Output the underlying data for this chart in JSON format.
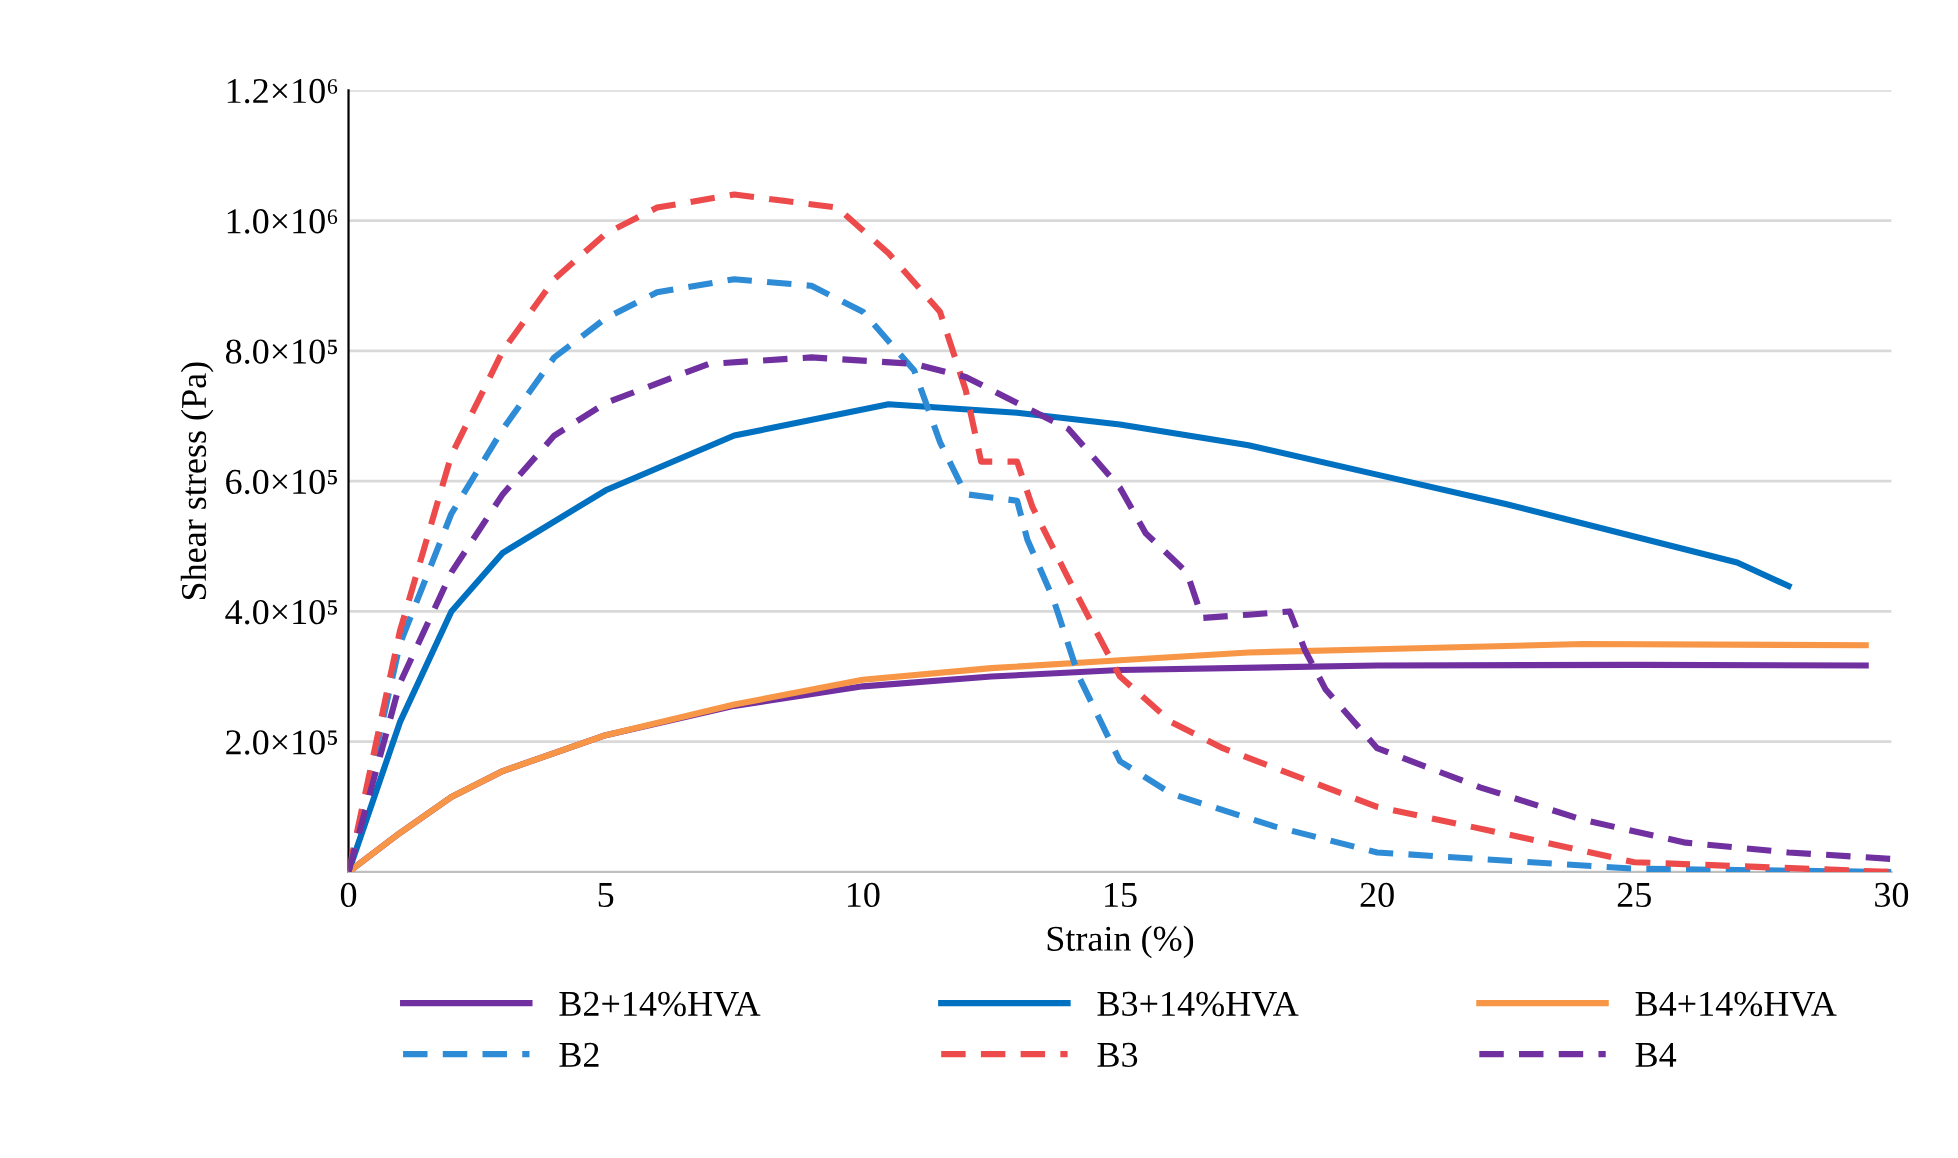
{
  "chart_data": {
    "type": "line",
    "xlabel": "Strain (%)",
    "ylabel": "Shear stress (Pa)",
    "xlim": [
      0,
      30
    ],
    "xticks": [
      0,
      5,
      10,
      15,
      20,
      25,
      30
    ],
    "ylim": [
      0,
      1200000
    ],
    "yticks": [
      {
        "value": 200000,
        "label": "2.0×10⁵"
      },
      {
        "value": 400000,
        "label": "4.0×10⁵"
      },
      {
        "value": 600000,
        "label": "6.0×10⁵"
      },
      {
        "value": 800000,
        "label": "8.0×10⁵"
      },
      {
        "value": 1000000,
        "label": "1.0×10⁶"
      },
      {
        "value": 1200000,
        "label": "1.2×10⁶"
      }
    ],
    "grid": "y",
    "legend": "bottom",
    "marker": "none",
    "series": [
      {
        "name": "B2+14%HVA",
        "color": "#7030a0",
        "line_style": "solid",
        "x": [
          0,
          1,
          2,
          3,
          5,
          7.5,
          10,
          12.5,
          15,
          20,
          25,
          29.5
        ],
        "values": [
          0,
          60000,
          115000,
          155000,
          210000,
          255000,
          285000,
          300000,
          310000,
          317000,
          318000,
          317000
        ]
      },
      {
        "name": "B3+14%HVA",
        "color": "#0070c0",
        "line_style": "solid",
        "x": [
          0,
          1,
          2,
          3,
          5,
          7.5,
          10.5,
          13,
          15,
          17.5,
          20,
          22.5,
          25,
          27,
          28
        ],
        "values": [
          0,
          230000,
          400000,
          490000,
          586000,
          670000,
          718000,
          705000,
          687000,
          655000,
          610000,
          565000,
          515000,
          475000,
          439000
        ]
      },
      {
        "name": "B4+14%HVA",
        "color": "#f79646",
        "line_style": "solid",
        "x": [
          0,
          1,
          2,
          3,
          5,
          7.5,
          10,
          12.5,
          15,
          17.5,
          20,
          24,
          29.5
        ],
        "values": [
          0,
          60000,
          115000,
          155000,
          210000,
          257000,
          295000,
          313000,
          325000,
          337000,
          342000,
          350000,
          348000
        ]
      },
      {
        "name": "B2",
        "color": "#2e8bd6",
        "line_style": "dashed",
        "x": [
          0,
          1,
          2,
          3,
          4,
          5,
          6,
          7.5,
          9,
          10,
          11,
          11.5,
          12,
          13,
          13.2,
          13.7,
          14.2,
          15,
          16,
          18,
          20,
          25,
          30
        ],
        "values": [
          0,
          350000,
          550000,
          680000,
          790000,
          850000,
          890000,
          910000,
          900000,
          860000,
          770000,
          660000,
          580000,
          570000,
          510000,
          420000,
          300000,
          170000,
          120000,
          70000,
          30000,
          5000,
          0
        ]
      },
      {
        "name": "B3",
        "color": "#ed4b4b",
        "line_style": "dashed",
        "x": [
          0,
          1,
          2,
          3,
          4,
          5,
          6,
          7.5,
          8.5,
          9.5,
          10.5,
          11.5,
          12,
          12.3,
          13,
          13.3,
          14,
          15,
          16,
          17,
          20,
          23,
          25,
          30
        ],
        "values": [
          0,
          370000,
          640000,
          800000,
          910000,
          980000,
          1020000,
          1040000,
          1030000,
          1020000,
          950000,
          860000,
          740000,
          630000,
          630000,
          560000,
          450000,
          300000,
          230000,
          190000,
          100000,
          50000,
          15000,
          0
        ]
      },
      {
        "name": "B4",
        "color": "#7030a0",
        "line_style": "dashed",
        "x": [
          0,
          1,
          2,
          3,
          4,
          5,
          7,
          9,
          11,
          12,
          13,
          14,
          15,
          15.5,
          16.3,
          16.6,
          17.5,
          18.3,
          18.6,
          19,
          20,
          22,
          24,
          26,
          28,
          30
        ],
        "values": [
          0,
          290000,
          460000,
          580000,
          670000,
          720000,
          780000,
          790000,
          780000,
          760000,
          720000,
          680000,
          590000,
          520000,
          460000,
          390000,
          395000,
          400000,
          340000,
          280000,
          190000,
          130000,
          80000,
          45000,
          30000,
          20000
        ]
      }
    ]
  }
}
